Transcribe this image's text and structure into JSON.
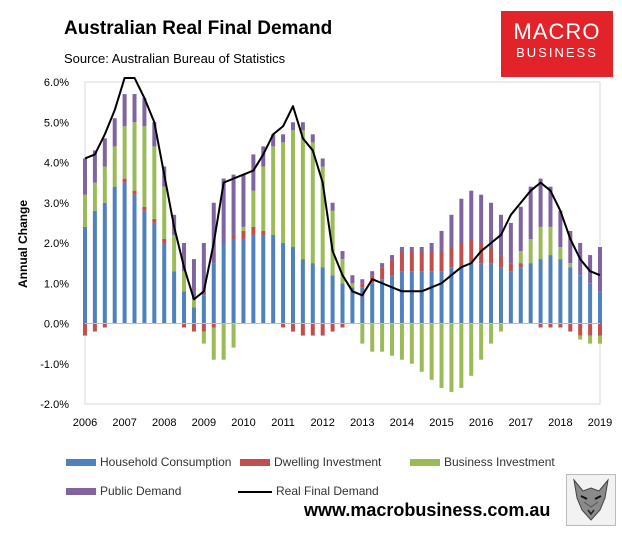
{
  "header": {
    "title": "Australian Real Final Demand",
    "subtitle": "Source: Australian Bureau of Statistics"
  },
  "logo": {
    "line1": "MACRO",
    "line2": "BUSINESS"
  },
  "footer": {
    "website": "www.macrobusiness.com.au"
  },
  "colors": {
    "household": "#4f81bd",
    "dwelling": "#c0504d",
    "business": "#9bbb59",
    "public": "#8064a2",
    "rfd": "#000000",
    "brand": "#e3232a"
  },
  "chart_data": {
    "type": "bar",
    "stacked": true,
    "title": "Australian Real Final Demand",
    "ylabel": "Annual Change",
    "xlabel": "",
    "ylim": [
      -2.0,
      6.0
    ],
    "yticks": [
      "-2.0%",
      "-1.0%",
      "0.0%",
      "1.0%",
      "2.0%",
      "3.0%",
      "4.0%",
      "5.0%",
      "6.0%"
    ],
    "xticks": [
      "2006",
      "2007",
      "2008",
      "2009",
      "2010",
      "2011",
      "2012",
      "2013",
      "2014",
      "2015",
      "2016",
      "2017",
      "2018",
      "2019"
    ],
    "x": [
      2006.0,
      2006.25,
      2006.5,
      2006.75,
      2007.0,
      2007.25,
      2007.5,
      2007.75,
      2008.0,
      2008.25,
      2008.5,
      2008.75,
      2009.0,
      2009.25,
      2009.5,
      2009.75,
      2010.0,
      2010.25,
      2010.5,
      2010.75,
      2011.0,
      2011.25,
      2011.5,
      2011.75,
      2012.0,
      2012.25,
      2012.5,
      2012.75,
      2013.0,
      2013.25,
      2013.5,
      2013.75,
      2014.0,
      2014.25,
      2014.5,
      2014.75,
      2015.0,
      2015.25,
      2015.5,
      2015.75,
      2016.0,
      2016.25,
      2016.5,
      2016.75,
      2017.0,
      2017.25,
      2017.5,
      2017.75,
      2018.0,
      2018.25,
      2018.5,
      2018.75,
      2019.0
    ],
    "series": [
      {
        "name": "Household Consumption",
        "color": "#4f81bd",
        "values": [
          2.4,
          2.8,
          3.0,
          3.4,
          3.5,
          3.2,
          2.8,
          2.5,
          2.0,
          1.3,
          0.8,
          0.4,
          0.7,
          1.5,
          2.0,
          2.1,
          2.1,
          2.2,
          2.2,
          2.2,
          2.0,
          1.9,
          1.6,
          1.5,
          1.4,
          1.2,
          1.0,
          0.9,
          0.9,
          1.0,
          1.1,
          1.2,
          1.3,
          1.3,
          1.3,
          1.3,
          1.3,
          1.4,
          1.4,
          1.5,
          1.5,
          1.5,
          1.4,
          1.3,
          1.4,
          1.5,
          1.6,
          1.7,
          1.6,
          1.4,
          1.2,
          1.0,
          0.8
        ]
      },
      {
        "name": "Dwelling Investment",
        "color": "#c0504d",
        "values": [
          -0.3,
          -0.2,
          -0.1,
          0.0,
          0.1,
          0.1,
          0.1,
          0.1,
          0.1,
          0.0,
          -0.1,
          -0.2,
          -0.2,
          -0.1,
          0.0,
          0.1,
          0.2,
          0.2,
          0.1,
          0.0,
          -0.1,
          -0.2,
          -0.3,
          -0.3,
          -0.3,
          -0.2,
          -0.1,
          0.0,
          0.1,
          0.2,
          0.3,
          0.4,
          0.5,
          0.5,
          0.5,
          0.5,
          0.5,
          0.5,
          0.6,
          0.6,
          0.5,
          0.4,
          0.3,
          0.2,
          0.1,
          0.0,
          -0.1,
          -0.1,
          -0.1,
          -0.2,
          -0.3,
          -0.3,
          -0.3
        ]
      },
      {
        "name": "Business Investment",
        "color": "#9bbb59",
        "values": [
          0.8,
          0.7,
          0.9,
          1.0,
          1.3,
          1.7,
          2.0,
          1.8,
          1.3,
          0.9,
          0.5,
          0.2,
          -0.3,
          -0.8,
          -0.9,
          -0.6,
          0.1,
          0.9,
          1.6,
          2.2,
          2.5,
          2.9,
          3.2,
          3.0,
          2.5,
          1.6,
          0.6,
          0.1,
          -0.5,
          -0.7,
          -0.7,
          -0.8,
          -0.9,
          -1.0,
          -1.2,
          -1.4,
          -1.6,
          -1.7,
          -1.6,
          -1.3,
          -0.9,
          -0.5,
          -0.2,
          0.0,
          0.3,
          0.6,
          0.8,
          0.7,
          0.3,
          0.1,
          -0.1,
          -0.2,
          -0.2
        ]
      },
      {
        "name": "Public Demand",
        "color": "#8064a2",
        "values": [
          0.9,
          0.8,
          0.7,
          0.7,
          0.8,
          0.7,
          0.7,
          0.6,
          0.5,
          0.5,
          0.7,
          1.0,
          1.3,
          1.5,
          1.6,
          1.5,
          1.3,
          0.9,
          0.5,
          0.3,
          0.2,
          0.2,
          0.2,
          0.2,
          0.2,
          0.2,
          0.2,
          0.2,
          0.1,
          0.1,
          0.1,
          0.1,
          0.1,
          0.1,
          0.1,
          0.2,
          0.5,
          0.8,
          1.1,
          1.2,
          1.2,
          1.1,
          1.0,
          1.0,
          1.1,
          1.3,
          1.2,
          1.0,
          0.9,
          0.8,
          0.8,
          0.7,
          1.1
        ]
      },
      {
        "name": "Real Final Demand",
        "type": "line",
        "color": "#000000",
        "values": [
          4.1,
          4.2,
          4.7,
          5.3,
          6.1,
          6.1,
          5.6,
          5.0,
          3.7,
          2.4,
          1.4,
          0.6,
          0.8,
          2.0,
          3.5,
          3.6,
          3.7,
          3.8,
          4.2,
          4.7,
          4.9,
          5.4,
          4.6,
          4.3,
          3.5,
          1.8,
          1.2,
          0.8,
          0.7,
          1.1,
          1.0,
          0.9,
          0.8,
          0.8,
          0.8,
          0.9,
          1.0,
          1.2,
          1.4,
          1.5,
          1.8,
          2.0,
          2.2,
          2.7,
          3.0,
          3.3,
          3.5,
          3.3,
          2.8,
          2.1,
          1.6,
          1.3,
          1.2
        ]
      }
    ],
    "grid": false,
    "legend": "bottom"
  }
}
